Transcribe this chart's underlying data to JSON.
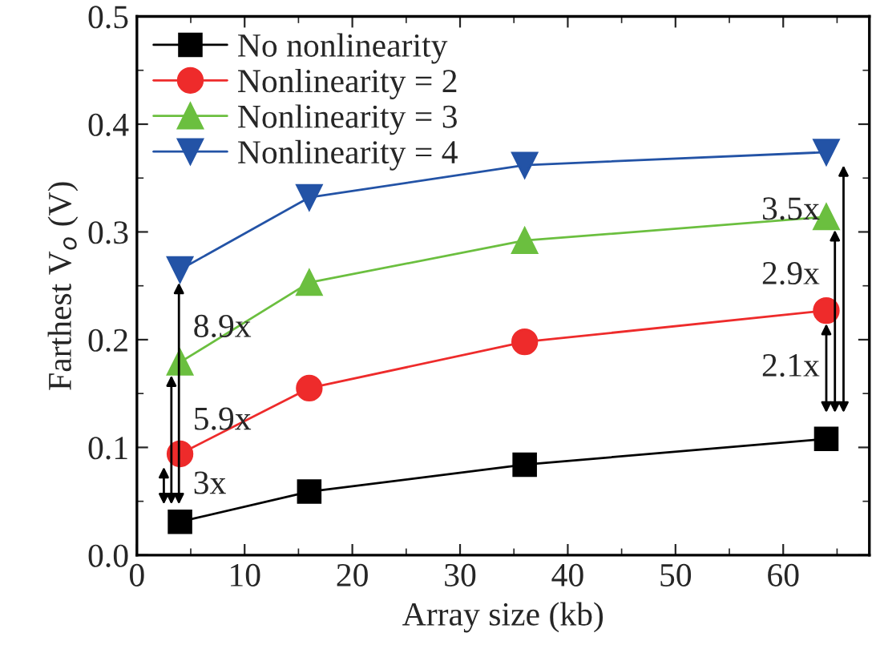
{
  "chart_data": {
    "type": "line",
    "xlabel": "Array size (kb)",
    "ylabel": "Farthest V$_{o}$ (V)",
    "x": [
      4,
      16,
      36,
      64
    ],
    "series": [
      {
        "name": "No nonlinearity",
        "color": "#000000",
        "marker": "square",
        "values": [
          0.031,
          0.059,
          0.084,
          0.108
        ]
      },
      {
        "name": "Nonlinearity = 2",
        "color": "#ee2b2b",
        "marker": "circle",
        "values": [
          0.094,
          0.155,
          0.198,
          0.227
        ]
      },
      {
        "name": "Nonlinearity = 3",
        "color": "#6bbf3f",
        "marker": "triangle",
        "values": [
          0.179,
          0.253,
          0.292,
          0.314
        ]
      },
      {
        "name": "Nonlinearity = 4",
        "color": "#2353a6",
        "marker": "triangle_down",
        "values": [
          0.265,
          0.332,
          0.362,
          0.374
        ]
      }
    ],
    "xlim": [
      0,
      68
    ],
    "ylim": [
      0,
      0.5
    ],
    "xticks": [
      0,
      10,
      20,
      30,
      40,
      50,
      60
    ],
    "yticks": [
      {
        "value": 0,
        "label": "0.0"
      },
      0.1,
      0.2,
      0.3,
      0.4,
      0.5
    ],
    "legend": "top left",
    "grid": false,
    "annotations": [
      "3x",
      "5.9x",
      "8.9x",
      "2.1x",
      "2.9x",
      "3.5x"
    ]
  }
}
